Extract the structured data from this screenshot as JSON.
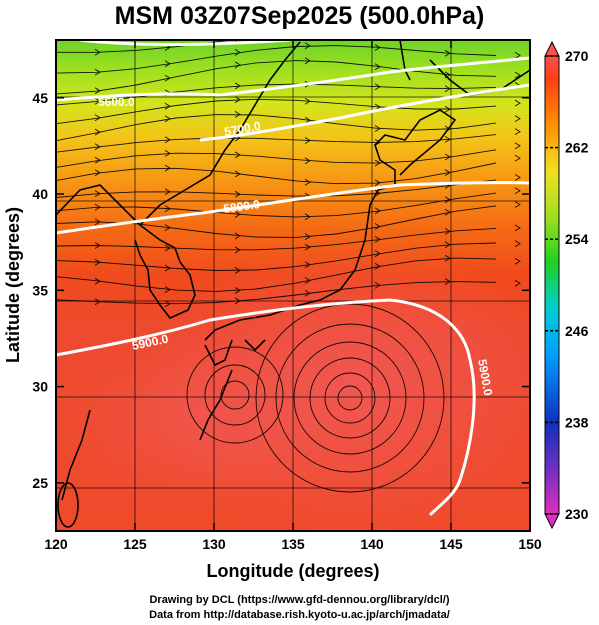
{
  "title": "MSM 03Z07Sep2025 (500.0hPa)",
  "x_axis": {
    "label": "Longitude (degrees)",
    "range": [
      120,
      150
    ],
    "ticks": [
      120,
      125,
      130,
      135,
      140,
      145,
      150
    ]
  },
  "y_axis": {
    "label": "Latitude  (degrees)",
    "range": [
      22.5,
      48
    ],
    "ticks": [
      25,
      30,
      35,
      40,
      45
    ]
  },
  "colorbar": {
    "range": [
      230,
      270
    ],
    "ticks": [
      230,
      238,
      246,
      254,
      262,
      270
    ],
    "colors": [
      "#e030c0",
      "#7030c0",
      "#1030c0",
      "#00a0ff",
      "#00d0d0",
      "#20d020",
      "#a0e020",
      "#f0e020",
      "#ff9000",
      "#ff4010",
      "#ff5050"
    ]
  },
  "contours": [
    {
      "label": "5900.0"
    },
    {
      "label": "5800.0"
    },
    {
      "label": "5700.0"
    },
    {
      "label": "5600.0"
    },
    {
      "label": "5900.0"
    }
  ],
  "footer": {
    "line1": "Drawing by DCL (https://www.gfd-dennou.org/library/dcl/)",
    "line2": "Data from http://database.rish.kyoto-u.ac.jp/arch/jmadata/"
  }
}
